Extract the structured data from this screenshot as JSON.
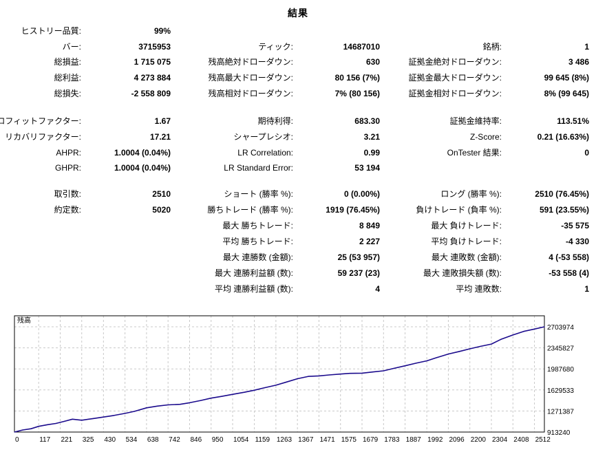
{
  "title": "結果",
  "rows": [
    {
      "col1": {
        "label": "ヒストリー品質:",
        "value": "99%"
      }
    },
    {
      "col1": {
        "label": "バー:",
        "value": "3715953"
      },
      "col2": {
        "label": "ティック:",
        "value": "14687010"
      },
      "col3": {
        "label": "銘柄:",
        "value": "1"
      }
    },
    {
      "col1": {
        "label": "総損益:",
        "value": "1 715 075"
      },
      "col2": {
        "label": "残高絶対ドローダウン:",
        "value": "630"
      },
      "col3": {
        "label": "証拠金絶対ドローダウン:",
        "value": "3 486"
      }
    },
    {
      "col1": {
        "label": "総利益:",
        "value": "4 273 884"
      },
      "col2": {
        "label": "残高最大ドローダウン:",
        "value": "80 156 (7%)"
      },
      "col3": {
        "label": "証拠金最大ドローダウン:",
        "value": "99 645 (8%)"
      }
    },
    {
      "col1": {
        "label": "総損失:",
        "value": "-2 558 809"
      },
      "col2": {
        "label": "残高相対ドローダウン:",
        "value": "7% (80 156)"
      },
      "col3": {
        "label": "証拠金相対ドローダウン:",
        "value": "8% (99 645)"
      }
    },
    {
      "col1": {
        "label": "プロフィットファクター:",
        "value": "1.67"
      },
      "col2": {
        "label": "期待利得:",
        "value": "683.30"
      },
      "col3": {
        "label": "証拠金維持率:",
        "value": "113.51%"
      }
    },
    {
      "col1": {
        "label": "リカバリファクター:",
        "value": "17.21"
      },
      "col2": {
        "label": "シャープレシオ:",
        "value": "3.21"
      },
      "col3": {
        "label": "Z-Score:",
        "value": "0.21 (16.63%)"
      }
    },
    {
      "col1": {
        "label": "AHPR:",
        "value": "1.0004 (0.04%)"
      },
      "col2": {
        "label": "LR Correlation:",
        "value": "0.99"
      },
      "col3": {
        "label": "OnTester 結果:",
        "value": "0"
      }
    },
    {
      "col1": {
        "label": "GHPR:",
        "value": "1.0004 (0.04%)"
      },
      "col2": {
        "label": "LR Standard Error:",
        "value": "53 194"
      }
    },
    {
      "col1": {
        "label": "取引数:",
        "value": "2510"
      },
      "col2": {
        "label": "ショート (勝率 %):",
        "value": "0 (0.00%)"
      },
      "col3": {
        "label": "ロング (勝率 %):",
        "value": "2510 (76.45%)"
      }
    },
    {
      "col1": {
        "label": "約定数:",
        "value": "5020"
      },
      "col2": {
        "label": "勝ちトレード (勝率 %):",
        "value": "1919 (76.45%)"
      },
      "col3": {
        "label": "負けトレード (負率 %):",
        "value": "591 (23.55%)"
      }
    },
    {
      "col2": {
        "label": "最大 勝ちトレード:",
        "value": "8 849"
      },
      "col3": {
        "label": "最大 負けトレード:",
        "value": "-35 575"
      }
    },
    {
      "col2": {
        "label": "平均 勝ちトレード:",
        "value": "2 227"
      },
      "col3": {
        "label": "平均 負けトレード:",
        "value": "-4 330"
      }
    },
    {
      "col2": {
        "label": "最大 連勝数 (金額):",
        "value": "25 (53 957)"
      },
      "col3": {
        "label": "最大 連敗数 (金額):",
        "value": "4 (-53 558)"
      }
    },
    {
      "col2": {
        "label": "最大 連勝利益額 (数):",
        "value": "59 237 (23)"
      },
      "col3": {
        "label": "最大 連敗損失額 (数):",
        "value": "-53 558 (4)"
      }
    },
    {
      "col2": {
        "label": "平均 連勝利益額 (数):",
        "value": "4"
      },
      "col3": {
        "label": "平均 連敗数:",
        "value": "1"
      }
    }
  ],
  "chart": {
    "label": "残高",
    "colors": {
      "line": "#1a0a8c",
      "grid": "#c8c8c8",
      "border": "#000000"
    }
  },
  "chart_data": {
    "type": "line",
    "title": "",
    "series": [
      {
        "name": "残高",
        "x": [
          0,
          40,
          80,
          117,
          160,
          200,
          240,
          280,
          325,
          380,
          430,
          480,
          534,
          580,
          638,
          690,
          742,
          800,
          846,
          900,
          950,
          1000,
          1054,
          1110,
          1159,
          1210,
          1263,
          1310,
          1367,
          1420,
          1471,
          1520,
          1575,
          1620,
          1679,
          1730,
          1783,
          1830,
          1887,
          1940,
          1992,
          2040,
          2096,
          2150,
          2200,
          2250,
          2304,
          2350,
          2408,
          2460,
          2512,
          2560
        ],
        "values": [
          913240,
          948000,
          970000,
          1010000,
          1038000,
          1060000,
          1095000,
          1132000,
          1115000,
          1143000,
          1168000,
          1195000,
          1230000,
          1265000,
          1325000,
          1355000,
          1375000,
          1385000,
          1412000,
          1450000,
          1490000,
          1520000,
          1555000,
          1590000,
          1625000,
          1668000,
          1710000,
          1760000,
          1820000,
          1860000,
          1868000,
          1885000,
          1900000,
          1912000,
          1915000,
          1935000,
          1955000,
          1995000,
          2040000,
          2085000,
          2125000,
          2180000,
          2240000,
          2285000,
          2330000,
          2370000,
          2410000,
          2490000,
          2565000,
          2625000,
          2665000,
          2703974
        ]
      }
    ],
    "xlim": [
      0,
      2560
    ],
    "ylim": [
      913240,
      2703974
    ],
    "yticks": [
      "2703974",
      "2345827",
      "1987680",
      "1629533",
      "1271387",
      "913240"
    ],
    "ytick_values": [
      2703974,
      2345827,
      1987680,
      1629533,
      1271387,
      913240
    ],
    "xticks": [
      "0",
      "117",
      "221",
      "325",
      "430",
      "534",
      "638",
      "742",
      "846",
      "950",
      "1054",
      "1159",
      "1263",
      "1367",
      "1471",
      "1575",
      "1679",
      "1783",
      "1887",
      "1992",
      "2096",
      "2200",
      "2304",
      "2408",
      "2512"
    ],
    "xtick_values": [
      0,
      117,
      221,
      325,
      430,
      534,
      638,
      742,
      846,
      950,
      1054,
      1159,
      1263,
      1367,
      1471,
      1575,
      1679,
      1783,
      1887,
      1992,
      2096,
      2200,
      2304,
      2408,
      2512
    ],
    "grid": true,
    "legend": "top-left"
  }
}
